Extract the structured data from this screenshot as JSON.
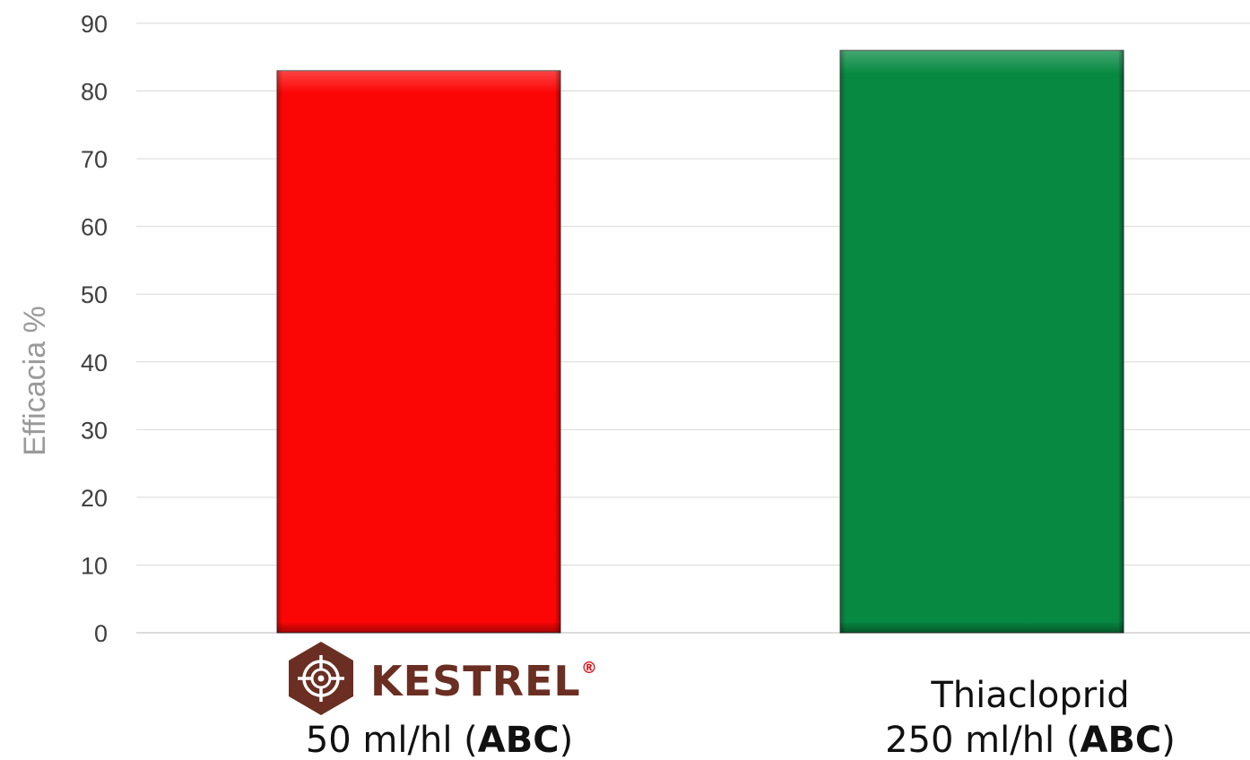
{
  "chart_data": {
    "type": "bar",
    "ylabel": "Efficacia %",
    "ylim": [
      0,
      90
    ],
    "yticks": [
      0,
      10,
      20,
      30,
      40,
      50,
      60,
      70,
      80,
      90
    ],
    "grid": true,
    "categories": [
      {
        "logo_text": "KESTREL",
        "logo_mark": "®",
        "dose": "50 ml/hl (",
        "dose_bold": "ABC",
        "dose_end": ")"
      },
      {
        "name": "Thiacloprid",
        "dose": "250 ml/hl (",
        "dose_bold": "ABC",
        "dose_end": ")"
      }
    ],
    "values": [
      83,
      86
    ],
    "colors": [
      "#fc0505",
      "#078942"
    ]
  }
}
